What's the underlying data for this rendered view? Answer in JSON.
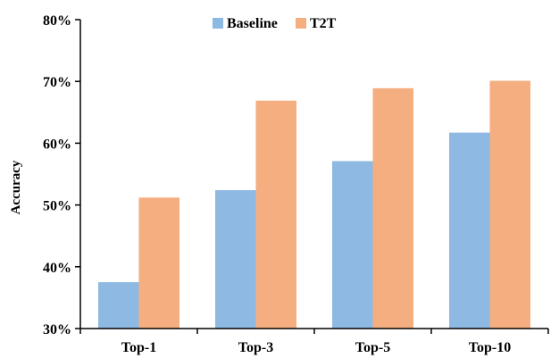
{
  "chart_data": {
    "type": "bar",
    "title": "",
    "xlabel": "",
    "ylabel": "Accuracy",
    "categories": [
      "Top-1",
      "Top-3",
      "Top-5",
      "Top-10"
    ],
    "series": [
      {
        "name": "Baseline",
        "color": "#8EB9E3",
        "values": [
          37.5,
          52.4,
          57.1,
          61.7
        ]
      },
      {
        "name": "T2T",
        "color": "#F5AE80",
        "values": [
          51.2,
          66.9,
          68.9,
          70.1
        ]
      }
    ],
    "ylim": [
      30,
      80
    ],
    "yticks": [
      30,
      40,
      50,
      60,
      70,
      80
    ],
    "ytick_labels": [
      "30%",
      "40%",
      "50%",
      "60%",
      "70%",
      "80%"
    ],
    "grid": false,
    "legend_position": "top-center"
  }
}
